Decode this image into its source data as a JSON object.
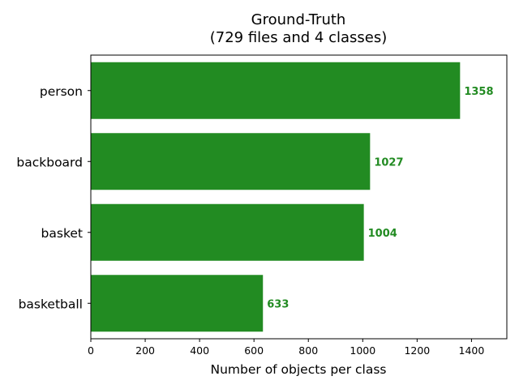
{
  "chart_data": {
    "type": "bar",
    "orientation": "horizontal",
    "title": "Ground-Truth",
    "subtitle": "(729 files and 4 classes)",
    "xlabel": "Number of objects per class",
    "ylabel": "",
    "categories": [
      "person",
      "backboard",
      "basket",
      "basketball"
    ],
    "values": [
      1358,
      1027,
      1004,
      633
    ],
    "value_labels": [
      "1358",
      "1027",
      "1004",
      "633"
    ],
    "xlim": [
      0,
      1530
    ],
    "xticks": [
      0,
      200,
      400,
      600,
      800,
      1000,
      1200,
      1400
    ],
    "xtick_labels": [
      "0",
      "200",
      "400",
      "600",
      "800",
      "1000",
      "1200",
      "1400"
    ],
    "grid": false,
    "bar_color": "#228b22",
    "label_color": "#228b22"
  }
}
